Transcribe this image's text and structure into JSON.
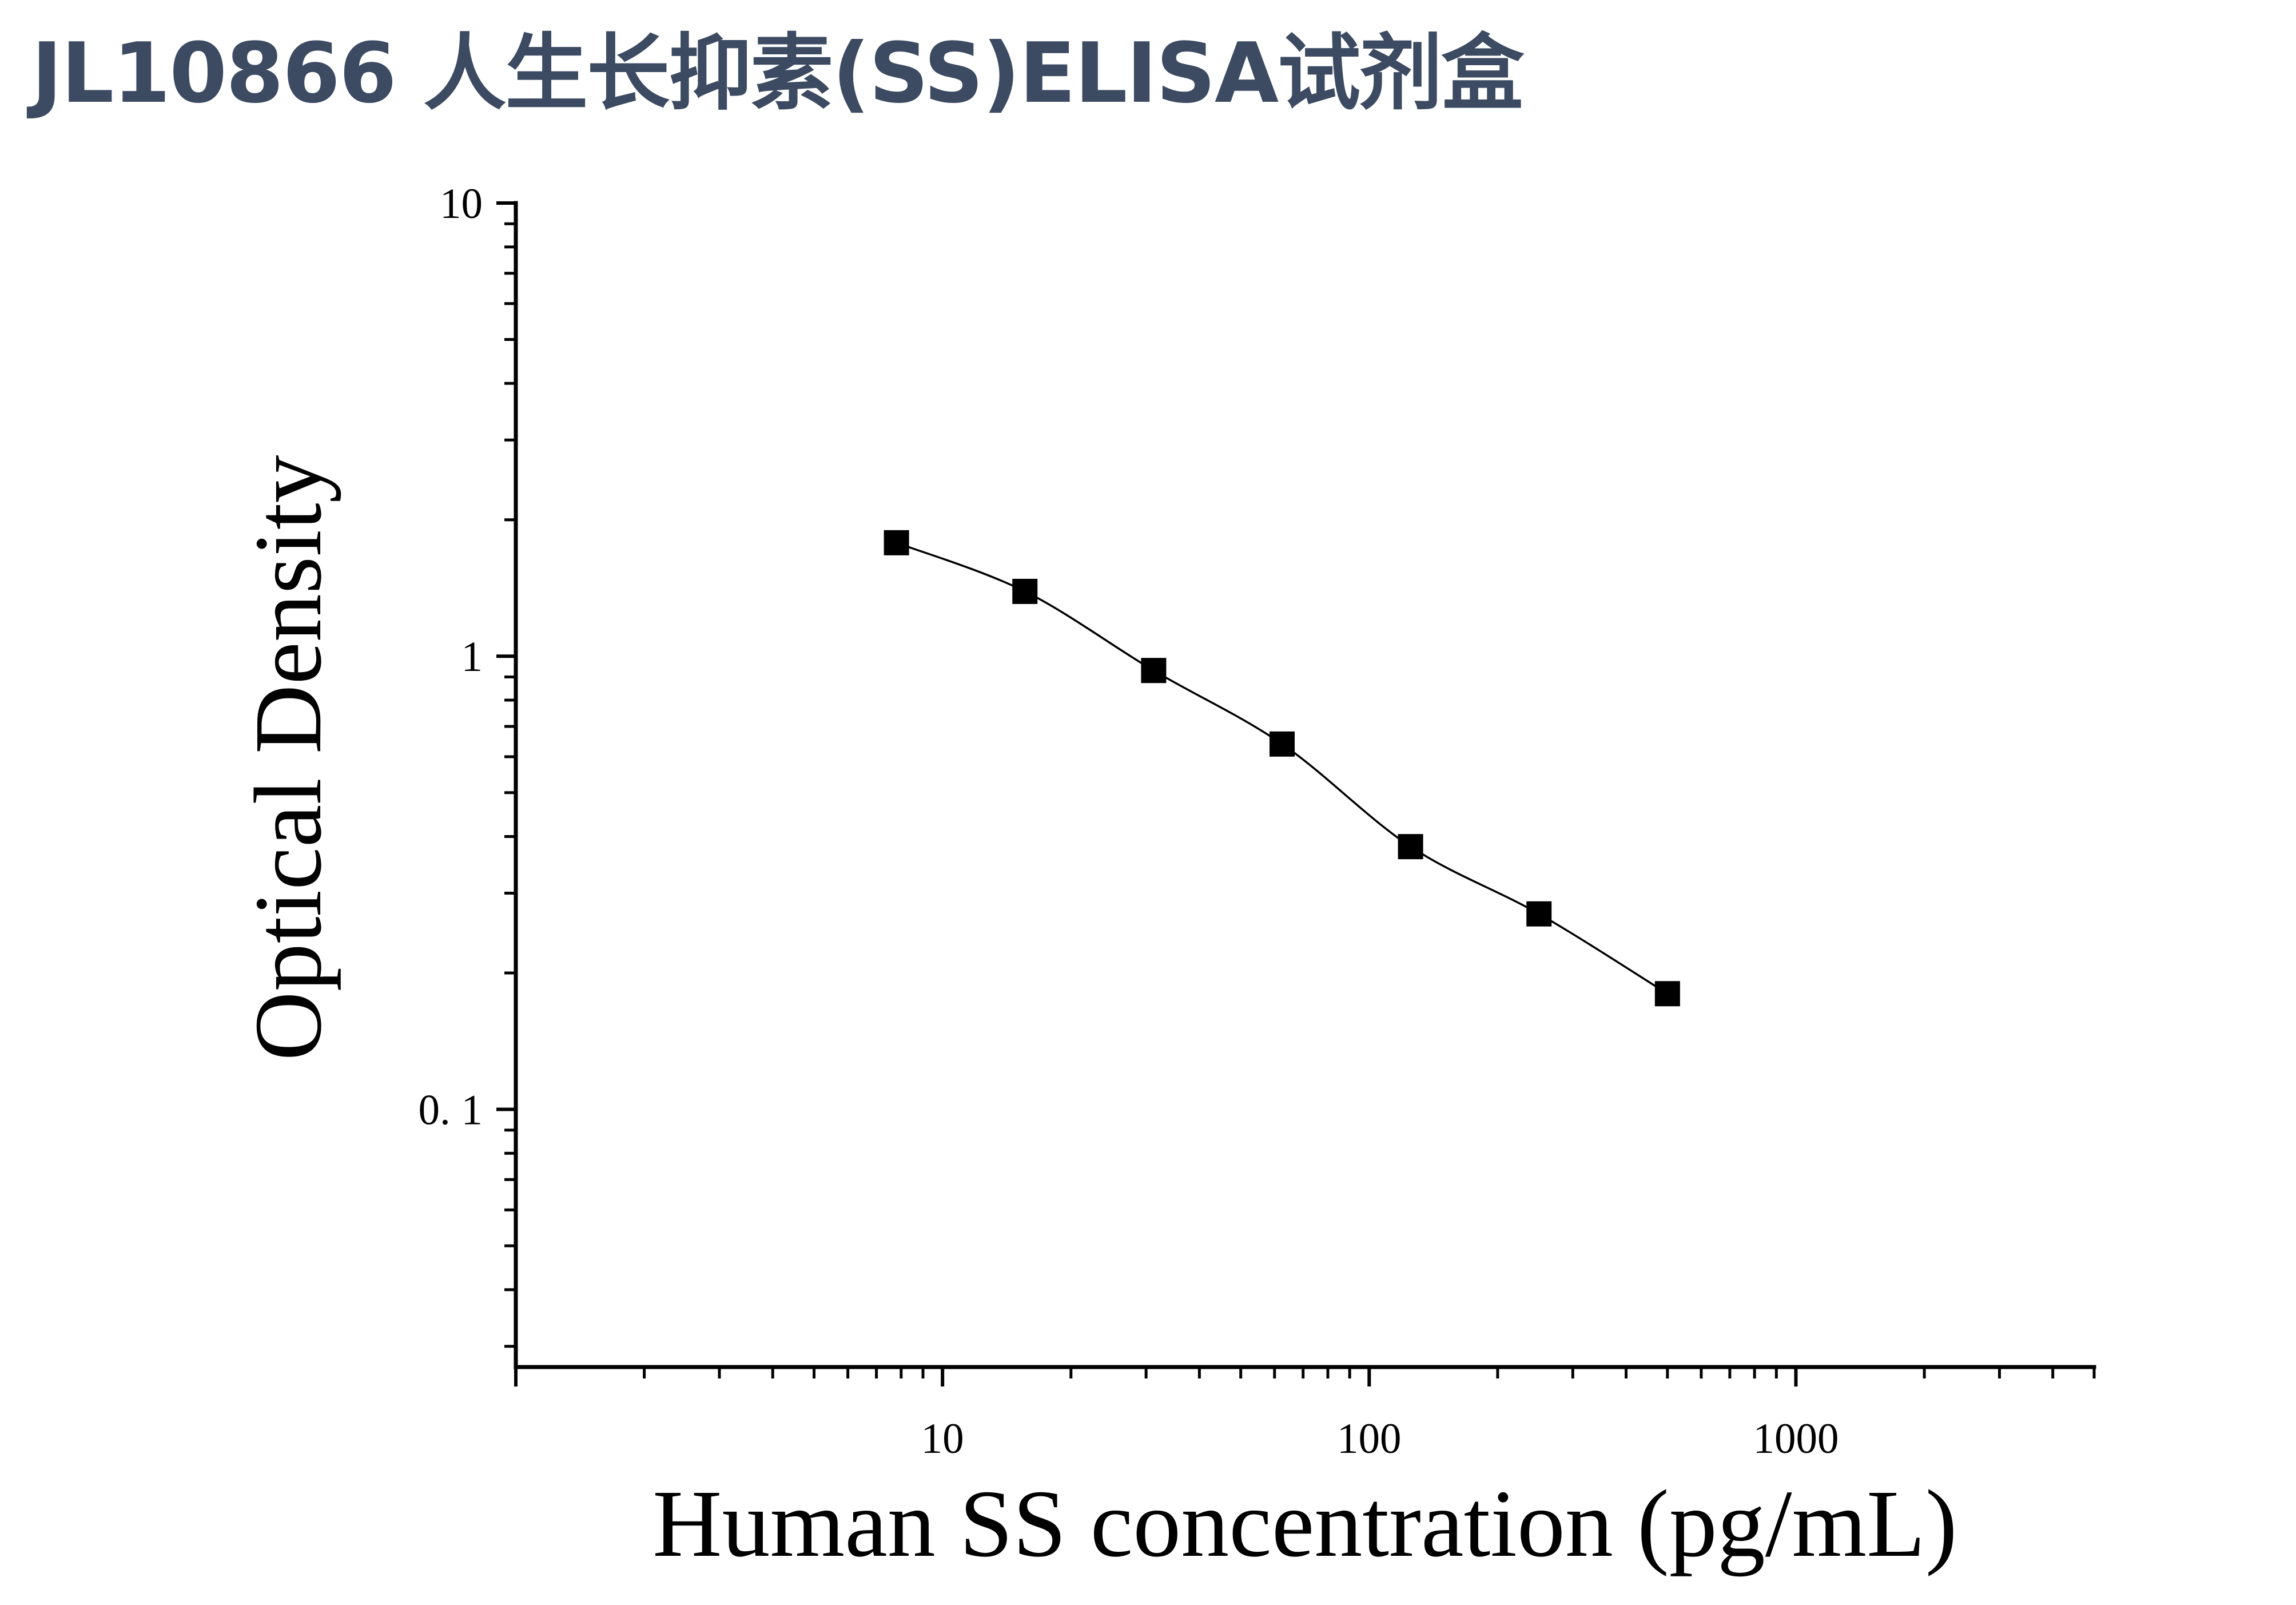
{
  "page": {
    "title": "JL10866 人生长抑素(SS)ELISA试剂盒"
  },
  "chart_data": {
    "type": "scatter",
    "xlabel": "Human SS concentration (pg/mL)",
    "ylabel": "Optical Density",
    "xscale": "log",
    "yscale": "log",
    "xlim": [
      1,
      5000
    ],
    "ylim": [
      0.027,
      10
    ],
    "x_ticks": [
      {
        "value": 10,
        "label": "10"
      },
      {
        "value": 100,
        "label": "100"
      },
      {
        "value": 1000,
        "label": "1000"
      }
    ],
    "y_ticks": [
      {
        "value": 0.1,
        "label": "0. 1"
      },
      {
        "value": 1,
        "label": "1"
      },
      {
        "value": 10,
        "label": "10"
      }
    ],
    "grid": false,
    "legend": "none",
    "marker": "square",
    "color": "#000000",
    "series": [
      {
        "x": [
          7.8,
          15.6,
          31.25,
          62.5,
          125,
          250,
          500
        ],
        "y": [
          1.78,
          1.39,
          0.93,
          0.64,
          0.38,
          0.27,
          0.18
        ]
      }
    ],
    "fit_curve": true
  }
}
